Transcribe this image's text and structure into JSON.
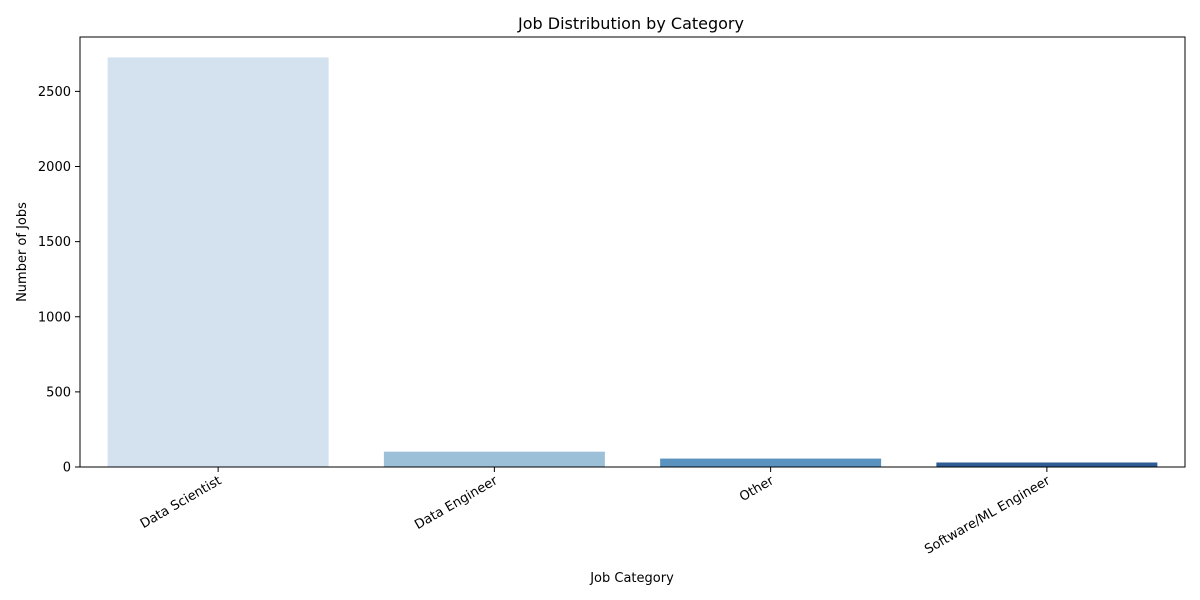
{
  "chart_data": {
    "type": "bar",
    "title": "Job Distribution by Category",
    "xlabel": "Job Category",
    "ylabel": "Number of Jobs",
    "categories": [
      "Data Scientist",
      "Data Engineer",
      "Other",
      "Software/ML Engineer"
    ],
    "values": [
      2726,
      102,
      56,
      30
    ],
    "colors": [
      "#d4e2ef",
      "#9bc0d8",
      "#5a93bf",
      "#2d5d92"
    ],
    "ylim": [
      0,
      2862
    ],
    "yticks": [
      0,
      500,
      1000,
      1500,
      2000,
      2500
    ],
    "grid": false,
    "legend": "none"
  }
}
